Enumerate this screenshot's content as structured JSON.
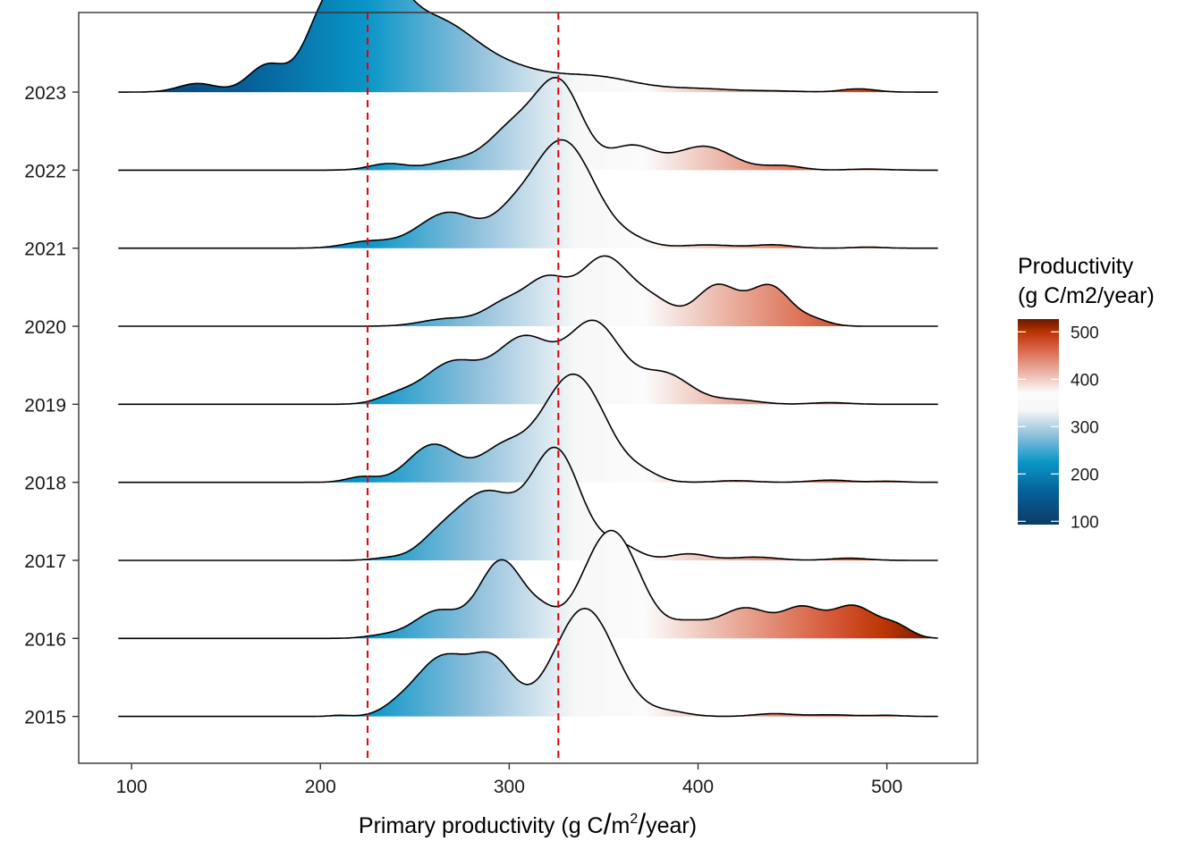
{
  "chart_data": {
    "type": "ridgeline",
    "title": "",
    "xlabel": {
      "prefix": "Primary productivity (g C",
      "sep1": "/",
      "unit": "m",
      "exp": "2",
      "sep2": "/",
      "suffix": "year)"
    },
    "ylabel": "",
    "xlim": [
      72,
      548
    ],
    "x_ticks": [
      100,
      200,
      300,
      400,
      500
    ],
    "x_tick_labels": [
      "100",
      "200",
      "300",
      "400",
      "500"
    ],
    "support": [
      93,
      527
    ],
    "scale": 1.9,
    "grid": false,
    "vlines": [
      {
        "x": 225,
        "color": "#e8000b",
        "style": "dashed"
      },
      {
        "x": 326,
        "color": "#e8000b",
        "style": "dashed"
      }
    ],
    "series": [
      {
        "name": "2015",
        "components": [
          [
            210,
            5,
            0.01
          ],
          [
            240,
            8,
            0.04
          ],
          [
            265,
            15,
            0.55
          ],
          [
            292,
            11,
            0.45
          ],
          [
            340,
            16,
            1.0
          ],
          [
            385,
            10,
            0.04
          ],
          [
            440,
            10,
            0.025
          ],
          [
            470,
            12,
            0.015
          ],
          [
            500,
            8,
            0.01
          ]
        ]
      },
      {
        "name": "2016",
        "components": [
          [
            235,
            10,
            0.03
          ],
          [
            262,
            12,
            0.25
          ],
          [
            296,
            12,
            0.72
          ],
          [
            318,
            8,
            0.15
          ],
          [
            354,
            15,
            1.0
          ],
          [
            395,
            10,
            0.12
          ],
          [
            425,
            14,
            0.28
          ],
          [
            455,
            10,
            0.25
          ],
          [
            482,
            12,
            0.3
          ],
          [
            505,
            8,
            0.1
          ]
        ]
      },
      {
        "name": "2017",
        "components": [
          [
            235,
            8,
            0.02
          ],
          [
            262,
            11,
            0.15
          ],
          [
            288,
            16,
            0.62
          ],
          [
            325,
            13,
            1.0
          ],
          [
            358,
            10,
            0.14
          ],
          [
            395,
            10,
            0.06
          ],
          [
            430,
            12,
            0.03
          ],
          [
            480,
            10,
            0.02
          ]
        ]
      },
      {
        "name": "2018",
        "components": [
          [
            222,
            8,
            0.05
          ],
          [
            260,
            13,
            0.35
          ],
          [
            296,
            12,
            0.28
          ],
          [
            334,
            17,
            1.0
          ],
          [
            372,
            8,
            0.05
          ],
          [
            420,
            10,
            0.015
          ],
          [
            470,
            10,
            0.02
          ],
          [
            500,
            8,
            0.01
          ]
        ]
      },
      {
        "name": "2019",
        "components": [
          [
            240,
            10,
            0.07
          ],
          [
            270,
            15,
            0.38
          ],
          [
            308,
            15,
            0.6
          ],
          [
            345,
            14,
            0.74
          ],
          [
            382,
            14,
            0.28
          ],
          [
            420,
            12,
            0.04
          ],
          [
            470,
            10,
            0.015
          ]
        ]
      },
      {
        "name": "2020",
        "components": [
          [
            268,
            14,
            0.07
          ],
          [
            298,
            11,
            0.2
          ],
          [
            320,
            11,
            0.4
          ],
          [
            350,
            13,
            0.62
          ],
          [
            376,
            12,
            0.22
          ],
          [
            410,
            11,
            0.37
          ],
          [
            438,
            11,
            0.37
          ],
          [
            462,
            8,
            0.05
          ]
        ]
      },
      {
        "name": "2021",
        "components": [
          [
            225,
            12,
            0.06
          ],
          [
            268,
            16,
            0.33
          ],
          [
            300,
            10,
            0.15
          ],
          [
            328,
            17,
            1.0
          ],
          [
            366,
            10,
            0.05
          ],
          [
            405,
            15,
            0.03
          ],
          [
            440,
            10,
            0.03
          ],
          [
            490,
            8,
            0.01
          ]
        ]
      },
      {
        "name": "2022",
        "components": [
          [
            236,
            10,
            0.06
          ],
          [
            270,
            12,
            0.08
          ],
          [
            303,
            14,
            0.4
          ],
          [
            327,
            12,
            0.75
          ],
          [
            365,
            12,
            0.22
          ],
          [
            403,
            15,
            0.22
          ],
          [
            445,
            10,
            0.04
          ],
          [
            490,
            10,
            0.01
          ]
        ]
      },
      {
        "name": "2023",
        "components": [
          [
            135,
            10,
            0.08
          ],
          [
            172,
            10,
            0.25
          ],
          [
            200,
            10,
            0.4
          ],
          [
            224,
            16,
            1.25
          ],
          [
            262,
            20,
            0.6
          ],
          [
            300,
            20,
            0.18
          ],
          [
            345,
            22,
            0.14
          ],
          [
            400,
            18,
            0.03
          ],
          [
            440,
            14,
            0.01
          ],
          [
            485,
            9,
            0.03
          ]
        ]
      }
    ],
    "legend": {
      "title_line1": "Productivity",
      "title_line2": "(g C/m2/year)",
      "position": "right",
      "ticks": [
        100,
        200,
        300,
        400,
        500
      ],
      "tick_labels": [
        "100",
        "200",
        "300",
        "400",
        "500"
      ],
      "range": [
        93,
        527
      ]
    },
    "colorscale": [
      [
        93,
        "#0c3b64"
      ],
      [
        160,
        "#065f98"
      ],
      [
        225,
        "#0a96c7"
      ],
      [
        280,
        "#8bbedb"
      ],
      [
        335,
        "#f7f7f7"
      ],
      [
        372,
        "#fbfbfb"
      ],
      [
        415,
        "#ebb3a4"
      ],
      [
        470,
        "#d65a3a"
      ],
      [
        500,
        "#b93302"
      ],
      [
        527,
        "#661900"
      ]
    ]
  }
}
